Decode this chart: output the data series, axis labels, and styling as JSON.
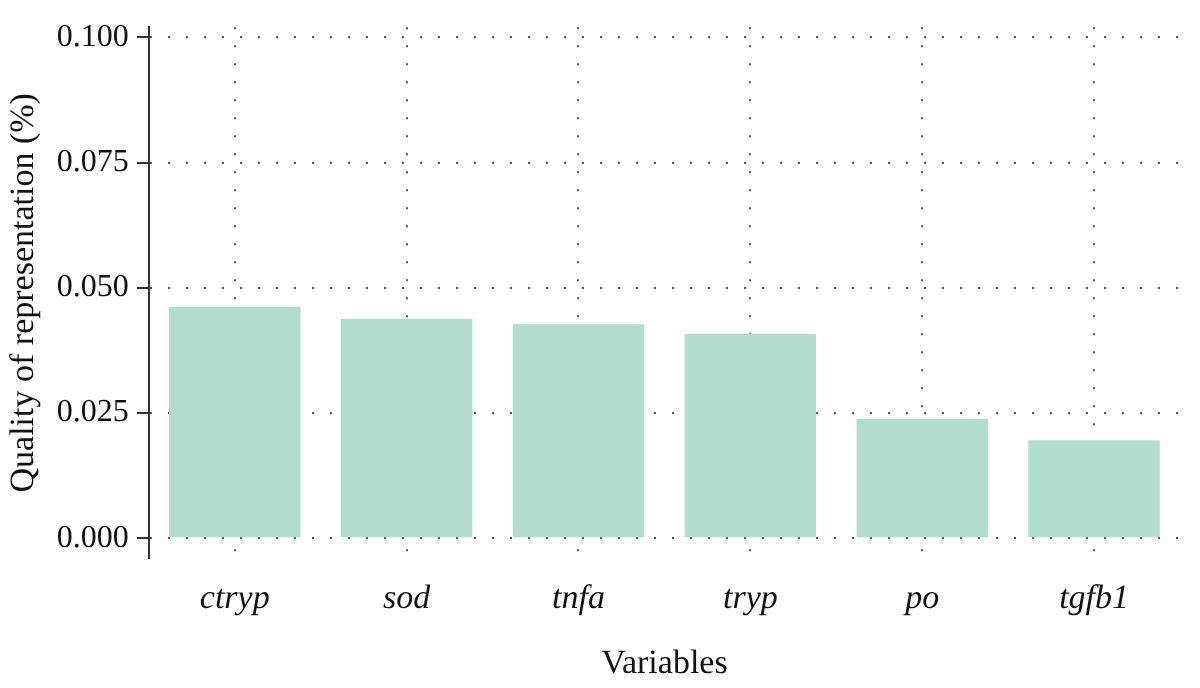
{
  "chart_data": {
    "type": "bar",
    "xlabel": "Variables",
    "ylabel": "Quality of representation (%)",
    "categories": [
      "ctryp",
      "sod",
      "tnfa",
      "tryp",
      "po",
      "tgfb1"
    ],
    "values": [
      0.0462,
      0.0438,
      0.0427,
      0.0408,
      0.0238,
      0.0196
    ],
    "color": "#b2dccc",
    "ylim": [
      -0.004,
      0.102
    ],
    "yticks": [
      {
        "value": 0,
        "label": "0.000"
      },
      {
        "value": 0.025,
        "label": "0.025"
      },
      {
        "value": 0.05,
        "label": "0.050"
      },
      {
        "value": 0.075,
        "label": "0.075"
      },
      {
        "value": 0.1,
        "label": "0.100"
      }
    ],
    "grid": true,
    "legend": false
  }
}
